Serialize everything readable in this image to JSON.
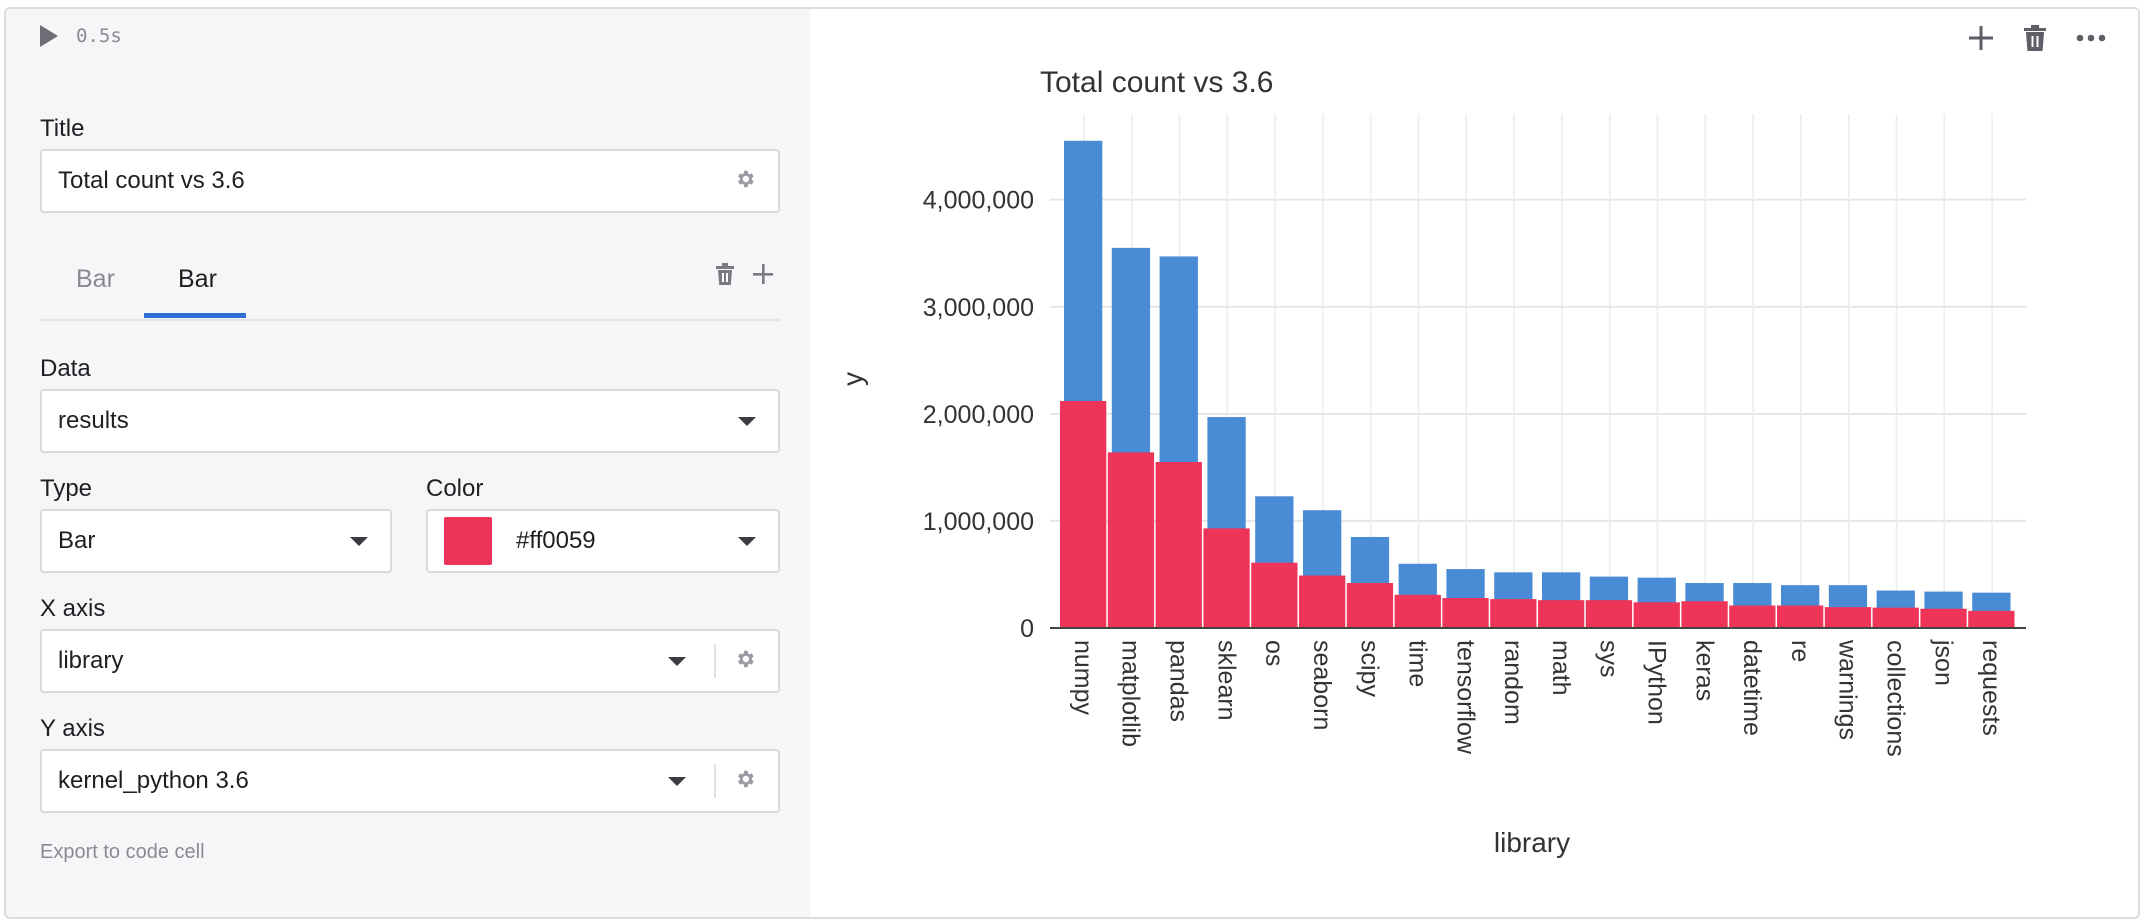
{
  "run": {
    "time": "0.5s"
  },
  "title_field": {
    "label": "Title",
    "value": "Total count vs 3.6"
  },
  "tabs": [
    {
      "label": "Bar"
    },
    {
      "label": "Bar"
    }
  ],
  "data_field": {
    "label": "Data",
    "value": "results"
  },
  "type_field": {
    "label": "Type",
    "value": "Bar"
  },
  "color_field": {
    "label": "Color",
    "value": "#ff0059",
    "swatch": "#ee3559"
  },
  "x_axis_field": {
    "label": "X axis",
    "value": "library"
  },
  "y_axis_field": {
    "label": "Y axis",
    "value": "kernel_python 3.6"
  },
  "export": {
    "label": "Export to code cell"
  },
  "icons": {
    "run": "play-icon",
    "settings": "gear-icon",
    "delete": "trash-icon",
    "add": "plus-icon",
    "dropdown": "chevron-down-icon",
    "more": "more-icon"
  },
  "chart_data": {
    "type": "bar",
    "title": "Total count vs 3.6",
    "xlabel": "library",
    "ylabel": "y",
    "ylim": [
      0,
      4800000
    ],
    "yticks": [
      0,
      1000000,
      2000000,
      3000000,
      4000000
    ],
    "ytick_labels": [
      "0",
      "1,000,000",
      "2,000,000",
      "3,000,000",
      "4,000,000"
    ],
    "grid": true,
    "categories": [
      "numpy",
      "matplotlib",
      "pandas",
      "sklearn",
      "os",
      "seaborn",
      "scipy",
      "time",
      "tensorflow",
      "random",
      "math",
      "sys",
      "IPython",
      "keras",
      "datetime",
      "re",
      "warnings",
      "collections",
      "json",
      "requests"
    ],
    "series": [
      {
        "values": [
          4550000,
          3550000,
          3470000,
          1970000,
          1230000,
          1100000,
          850000,
          600000,
          550000,
          520000,
          520000,
          480000,
          470000,
          420000,
          420000,
          400000,
          400000,
          350000,
          340000,
          330000
        ],
        "color": "#4a8bd6"
      },
      {
        "values": [
          2120000,
          1640000,
          1550000,
          930000,
          610000,
          490000,
          420000,
          310000,
          280000,
          270000,
          260000,
          260000,
          240000,
          250000,
          210000,
          210000,
          195000,
          190000,
          180000,
          160000
        ],
        "color": "#ee3559"
      }
    ]
  }
}
